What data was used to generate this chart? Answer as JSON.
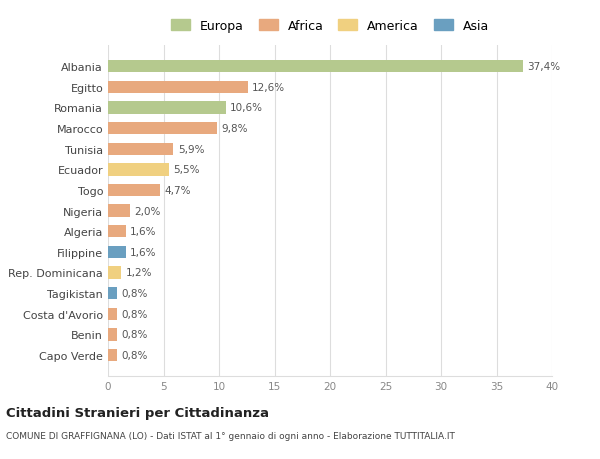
{
  "countries": [
    "Albania",
    "Egitto",
    "Romania",
    "Marocco",
    "Tunisia",
    "Ecuador",
    "Togo",
    "Nigeria",
    "Algeria",
    "Filippine",
    "Rep. Dominicana",
    "Tagikistan",
    "Costa d'Avorio",
    "Benin",
    "Capo Verde"
  ],
  "values": [
    37.4,
    12.6,
    10.6,
    9.8,
    5.9,
    5.5,
    4.7,
    2.0,
    1.6,
    1.6,
    1.2,
    0.8,
    0.8,
    0.8,
    0.8
  ],
  "labels": [
    "37,4%",
    "12,6%",
    "10,6%",
    "9,8%",
    "5,9%",
    "5,5%",
    "4,7%",
    "2,0%",
    "1,6%",
    "1,6%",
    "1,2%",
    "0,8%",
    "0,8%",
    "0,8%",
    "0,8%"
  ],
  "continents": [
    "Europa",
    "Africa",
    "Europa",
    "Africa",
    "Africa",
    "America",
    "Africa",
    "Africa",
    "Africa",
    "Asia",
    "America",
    "Asia",
    "Africa",
    "Africa",
    "Africa"
  ],
  "continent_colors": {
    "Europa": "#b5c98e",
    "Africa": "#e8a97e",
    "America": "#f0d080",
    "Asia": "#6a9fc0"
  },
  "legend_order": [
    "Europa",
    "Africa",
    "America",
    "Asia"
  ],
  "legend_colors": [
    "#b5c98e",
    "#e8a97e",
    "#f0d080",
    "#6a9fc0"
  ],
  "title": "Cittadini Stranieri per Cittadinanza",
  "subtitle": "COMUNE DI GRAFFIGNANA (LO) - Dati ISTAT al 1° gennaio di ogni anno - Elaborazione TUTTITALIA.IT",
  "xlim": [
    0,
    40
  ],
  "xticks": [
    0,
    5,
    10,
    15,
    20,
    25,
    30,
    35,
    40
  ],
  "bg_color": "#ffffff",
  "grid_color": "#dddddd",
  "bar_height": 0.6
}
